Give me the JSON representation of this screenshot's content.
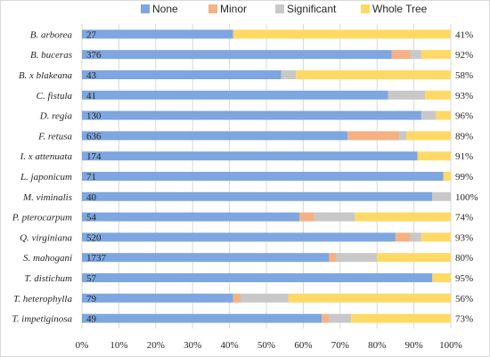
{
  "chart_data": {
    "type": "bar",
    "orientation": "horizontal",
    "stacked": "percent",
    "categories": [
      "B. arborea",
      "B. buceras",
      "B. x blakeana",
      "C. fistula",
      "D. regia",
      "F. retusa",
      "I. x attenuata",
      "L. japonicum",
      "M. viminalis",
      "P. pterocarpum",
      "Q. virginiana",
      "S. mahogani",
      "T. distichum",
      "T. heterophylla",
      "T. impetiginosa"
    ],
    "counts": [
      "27",
      "376",
      "43",
      "41",
      "130",
      "636",
      "174",
      "71",
      "40",
      "54",
      "520",
      "1737",
      "57",
      "79",
      "49"
    ],
    "right_labels": [
      "41%",
      "92%",
      "58%",
      "93%",
      "96%",
      "89%",
      "91%",
      "99%",
      "100%",
      "74%",
      "93%",
      "80%",
      "95%",
      "56%",
      "73%"
    ],
    "series": [
      {
        "name": "None",
        "color": "#7ea6e0",
        "values": [
          41,
          84,
          54,
          83,
          92,
          72,
          91,
          98,
          95,
          59,
          85,
          67,
          95,
          41,
          65
        ]
      },
      {
        "name": "Minor",
        "color": "#f4b183",
        "values": [
          0,
          5,
          0,
          0,
          0,
          14,
          0,
          0,
          0,
          4,
          4,
          2,
          0,
          2,
          2
        ]
      },
      {
        "name": "Significant",
        "color": "#c8c8c8",
        "values": [
          0,
          3,
          4,
          10,
          4,
          2,
          0,
          0,
          5,
          11,
          3,
          11,
          0,
          13,
          6
        ]
      },
      {
        "name": "Whole Tree",
        "color": "#ffd966",
        "values": [
          59,
          8,
          42,
          7,
          4,
          12,
          9,
          2,
          0,
          26,
          8,
          20,
          5,
          44,
          27
        ]
      }
    ],
    "x_ticks": [
      "0%",
      "10%",
      "20%",
      "30%",
      "40%",
      "50%",
      "60%",
      "70%",
      "80%",
      "90%",
      "100%"
    ],
    "xlim": [
      0,
      100
    ],
    "grid": true,
    "legend_position": "top"
  }
}
